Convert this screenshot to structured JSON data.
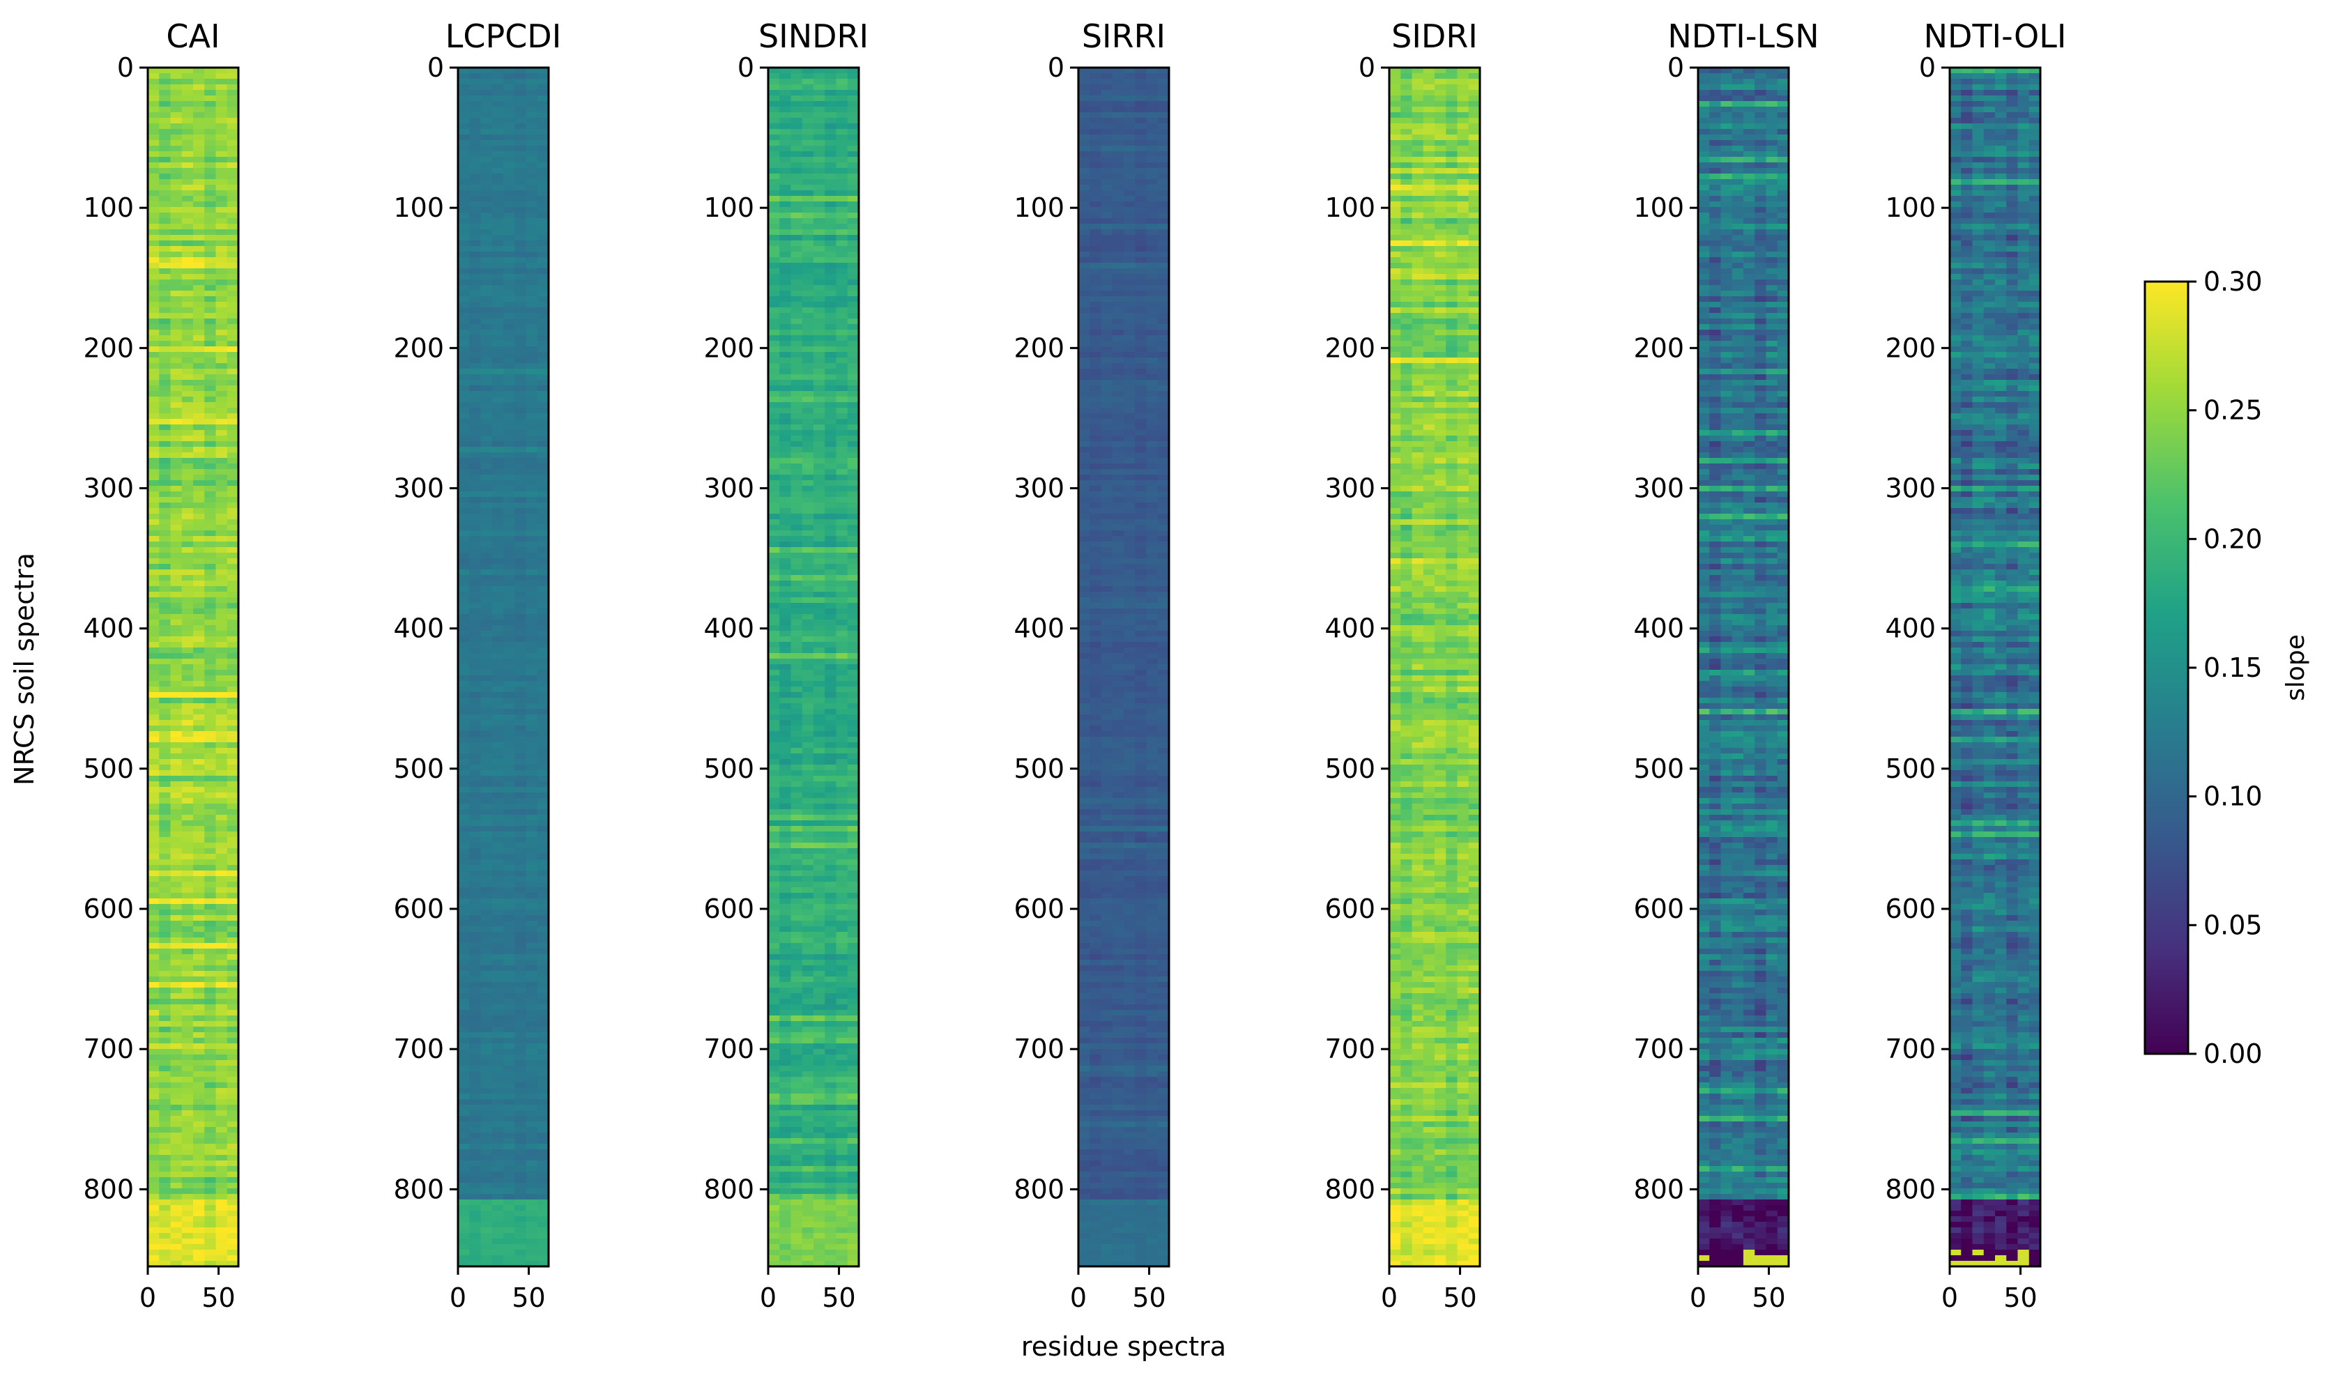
{
  "chart_data": {
    "type": "heatmap",
    "figure_ylabel": "NRCS soil spectra",
    "figure_xlabel": "residue spectra",
    "x_range": [
      0,
      64
    ],
    "y_range": [
      0,
      855
    ],
    "x_ticks": [
      "0",
      "50"
    ],
    "y_ticks": [
      "0",
      "100",
      "200",
      "300",
      "400",
      "500",
      "600",
      "700",
      "800"
    ],
    "colormap": "viridis",
    "colorbar": {
      "label": "slope",
      "range": [
        0.0,
        0.3
      ],
      "ticks": [
        "0.00",
        "0.05",
        "0.10",
        "0.15",
        "0.20",
        "0.25",
        "0.30"
      ]
    },
    "panels": [
      {
        "title": "CAI",
        "base_slope": 0.25,
        "variation": 0.04,
        "bottom_band_slope": 0.29
      },
      {
        "title": "LCPCDI",
        "base_slope": 0.12,
        "variation": 0.015,
        "bottom_band_slope": 0.19
      },
      {
        "title": "SINDRI",
        "base_slope": 0.19,
        "variation": 0.03,
        "bottom_band_slope": 0.24
      },
      {
        "title": "SIRRI",
        "base_slope": 0.085,
        "variation": 0.015,
        "bottom_band_slope": 0.11
      },
      {
        "title": "SIDRI",
        "base_slope": 0.245,
        "variation": 0.04,
        "bottom_band_slope": 0.29
      },
      {
        "title": "NDTI-LSN",
        "base_slope": 0.12,
        "variation": 0.06,
        "bottom_band_slope": 0.02
      },
      {
        "title": "NDTI-OLI",
        "base_slope": 0.12,
        "variation": 0.06,
        "bottom_band_slope": 0.02
      }
    ]
  }
}
